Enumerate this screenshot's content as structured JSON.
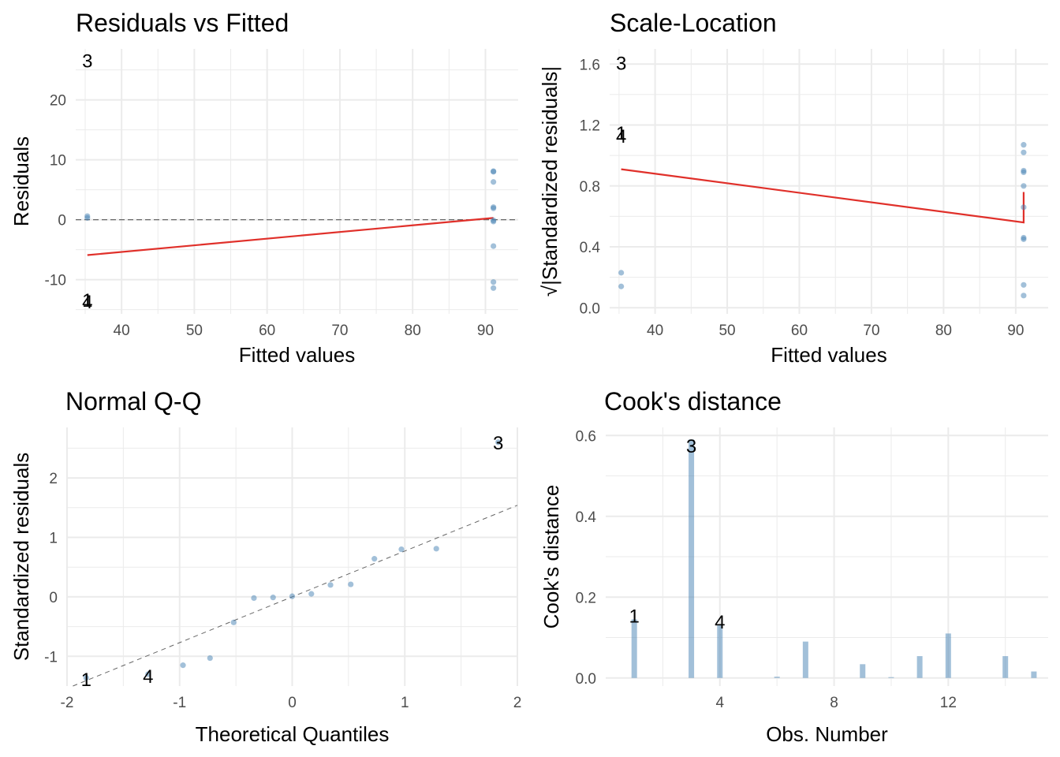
{
  "style": {
    "point_color": "#4682b4",
    "smooth_color": "#e0302a",
    "grid_color": "#ebebeb",
    "ref_line_color": "#666666",
    "text_color": "#1a1a1a",
    "label_color": "#000000"
  },
  "chart_data": [
    {
      "id": "residuals-vs-fitted",
      "type": "scatter",
      "title": "Residuals vs Fitted",
      "xlabel": "Fitted values",
      "ylabel": "Residuals",
      "xlim": [
        33.7,
        94.5
      ],
      "ylim": [
        -15.7,
        28.5
      ],
      "xticks": [
        40,
        50,
        60,
        70,
        80,
        90
      ],
      "yticks": [
        -10,
        0,
        10,
        20
      ],
      "points": [
        {
          "x": 35.3,
          "y": 0.6
        },
        {
          "x": 35.3,
          "y": 0.3
        },
        {
          "x": 91.1,
          "y": 8.1
        },
        {
          "x": 91.1,
          "y": 8.0
        },
        {
          "x": 91.1,
          "y": 6.3
        },
        {
          "x": 91.1,
          "y": 2.1
        },
        {
          "x": 91.1,
          "y": 1.9
        },
        {
          "x": 91.1,
          "y": -0.1
        },
        {
          "x": 91.1,
          "y": -0.3
        },
        {
          "x": 91.1,
          "y": -4.4
        },
        {
          "x": 91.1,
          "y": -10.4
        },
        {
          "x": 91.1,
          "y": -11.4
        }
      ],
      "smooth": [
        {
          "x": 35.3,
          "y": -5.9
        },
        {
          "x": 91.1,
          "y": 0.3
        }
      ],
      "hline": 0,
      "labels": [
        {
          "text": "3",
          "x": 35.3,
          "y": 26.6
        },
        {
          "text": "1",
          "x": 35.3,
          "y": -13.3
        },
        {
          "text": "4",
          "x": 35.3,
          "y": -13.6
        }
      ]
    },
    {
      "id": "scale-location",
      "type": "scatter",
      "title": "Scale-Location",
      "xlabel": "Fitted values",
      "ylabel": "√|Standardized residuals|",
      "xlim": [
        33.7,
        94.5
      ],
      "ylim": [
        -0.04,
        1.7
      ],
      "xticks": [
        40,
        50,
        60,
        70,
        80,
        90
      ],
      "yticks": [
        0.0,
        0.4,
        0.8,
        1.2,
        1.6
      ],
      "ytick_labels": [
        "0.0",
        "0.4",
        "0.8",
        "1.2",
        "1.6"
      ],
      "points": [
        {
          "x": 35.3,
          "y": 0.23
        },
        {
          "x": 35.3,
          "y": 0.14
        },
        {
          "x": 91.1,
          "y": 1.07
        },
        {
          "x": 91.1,
          "y": 1.02
        },
        {
          "x": 91.1,
          "y": 0.9
        },
        {
          "x": 91.1,
          "y": 0.89
        },
        {
          "x": 91.1,
          "y": 0.8
        },
        {
          "x": 91.1,
          "y": 0.66
        },
        {
          "x": 91.1,
          "y": 0.46
        },
        {
          "x": 91.1,
          "y": 0.45
        },
        {
          "x": 91.1,
          "y": 0.15
        },
        {
          "x": 91.1,
          "y": 0.08
        }
      ],
      "smooth": [
        {
          "x": 35.3,
          "y": 0.91
        },
        {
          "x": 91.1,
          "y": 0.56
        },
        {
          "x": 91.1,
          "y": 0.76
        }
      ],
      "labels": [
        {
          "text": "3",
          "x": 35.3,
          "y": 1.61
        },
        {
          "text": "1",
          "x": 35.3,
          "y": 1.15
        },
        {
          "text": "4",
          "x": 35.3,
          "y": 1.13
        }
      ]
    },
    {
      "id": "normal-qq",
      "type": "scatter",
      "title": "Normal Q-Q",
      "xlabel": "Theoretical Quantiles",
      "ylabel": "Standardized residuals",
      "xlim": [
        -2.0,
        2.0
      ],
      "ylim": [
        -1.5,
        2.85
      ],
      "xticks": [
        -2,
        -1,
        0,
        1,
        2
      ],
      "yticks": [
        -1,
        0,
        1,
        2
      ],
      "points": [
        {
          "x": -1.83,
          "y": -1.36
        },
        {
          "x": -1.28,
          "y": -1.3
        },
        {
          "x": -0.97,
          "y": -1.15
        },
        {
          "x": -0.73,
          "y": -1.03
        },
        {
          "x": -0.52,
          "y": -0.43
        },
        {
          "x": -0.34,
          "y": -0.02
        },
        {
          "x": -0.17,
          "y": -0.01
        },
        {
          "x": 0.0,
          "y": 0.01
        },
        {
          "x": 0.17,
          "y": 0.05
        },
        {
          "x": 0.34,
          "y": 0.2
        },
        {
          "x": 0.52,
          "y": 0.21
        },
        {
          "x": 0.73,
          "y": 0.64
        },
        {
          "x": 0.97,
          "y": 0.8
        },
        {
          "x": 1.28,
          "y": 0.81
        },
        {
          "x": 1.83,
          "y": 2.6
        }
      ],
      "refline": {
        "slope": 0.77,
        "intercept": 0.0
      },
      "labels": [
        {
          "text": "3",
          "x": 1.83,
          "y": 2.6
        },
        {
          "text": "1",
          "x": -1.83,
          "y": -1.38
        },
        {
          "text": "4",
          "x": -1.28,
          "y": -1.33
        }
      ]
    },
    {
      "id": "cooks-distance",
      "type": "bar",
      "title": "Cook's distance",
      "xlabel": "Obs. Number",
      "ylabel": "Cook's distance",
      "xlim": [
        0.0,
        15.5
      ],
      "ylim": [
        -0.02,
        0.62
      ],
      "xticks": [
        4,
        8,
        12
      ],
      "yticks": [
        0.0,
        0.2,
        0.4,
        0.6
      ],
      "ytick_labels": [
        "0.0",
        "0.2",
        "0.4",
        "0.6"
      ],
      "categories": [
        1,
        2,
        3,
        4,
        5,
        6,
        7,
        8,
        9,
        10,
        11,
        12,
        13,
        14,
        15
      ],
      "values": [
        0.145,
        0.0,
        0.59,
        0.13,
        0.0,
        0.003,
        0.09,
        0.0,
        0.034,
        0.002,
        0.054,
        0.11,
        0.0,
        0.054,
        0.016
      ],
      "labels": [
        {
          "text": "3",
          "x": 3,
          "y": 0.575
        },
        {
          "text": "1",
          "x": 1,
          "y": 0.155
        },
        {
          "text": "4",
          "x": 4,
          "y": 0.14
        }
      ]
    }
  ]
}
